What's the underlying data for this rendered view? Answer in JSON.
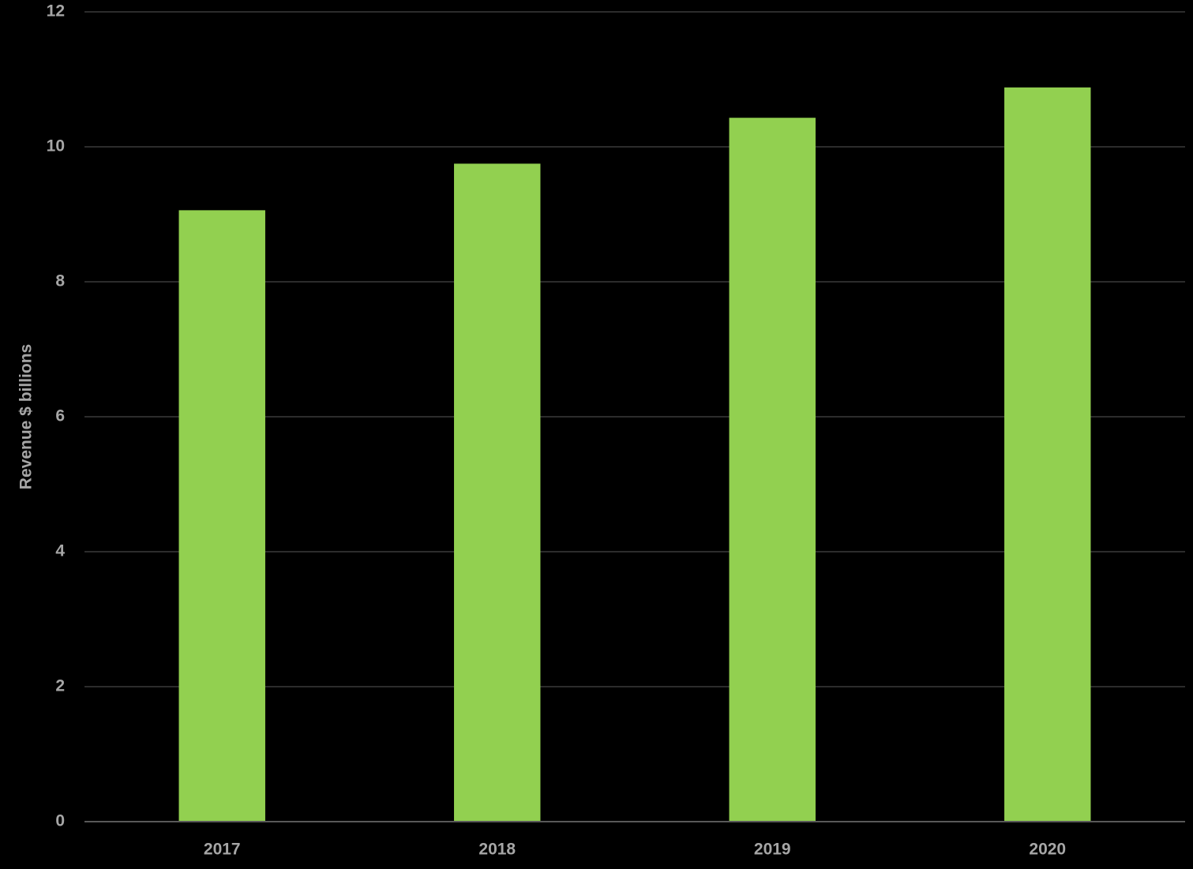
{
  "chart_data": {
    "type": "bar",
    "y_label": "Revenue $ billions",
    "categories": [
      "2017",
      "2018",
      "2019",
      "2020"
    ],
    "values": [
      9.06,
      9.75,
      10.43,
      10.88
    ],
    "color": "#92d050",
    "ylim": [
      0,
      12
    ],
    "yticks": [
      0,
      2,
      4,
      6,
      8,
      10,
      12
    ],
    "grid": true
  }
}
